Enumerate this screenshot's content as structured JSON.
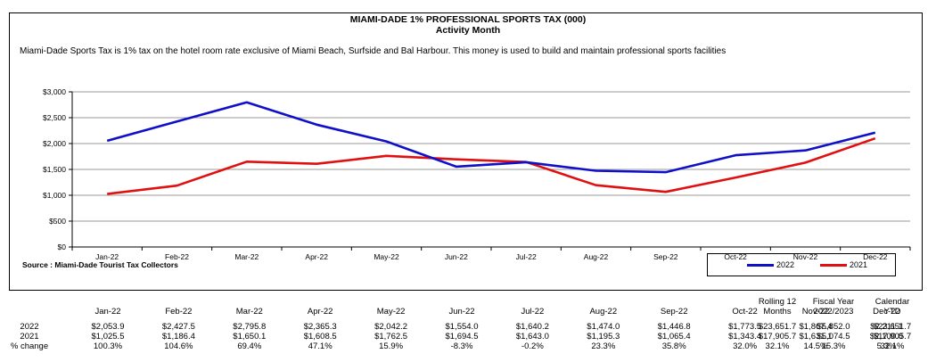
{
  "header": {
    "title": "MIAMI-DADE 1% PROFESSIONAL SPORTS TAX  (000)",
    "subtitle": "Activity Month",
    "description": "Miami-Dade Sports Tax is 1% tax on the hotel room rate exclusive of Miami Beach, Surfside and Bal Harbour. This money is used to build and maintain professional sports facilities",
    "source": "Source : Miami-Dade Tourist Tax Collectors"
  },
  "chart_data": {
    "type": "line",
    "categories": [
      "Jan-22",
      "Feb-22",
      "Mar-22",
      "Apr-22",
      "May-22",
      "Jun-22",
      "Jul-22",
      "Aug-22",
      "Sep-22",
      "Oct-22",
      "Nov-22",
      "Dec-22"
    ],
    "series": [
      {
        "name": "2022",
        "color": "#1010c8",
        "values": [
          2053.9,
          2427.5,
          2795.8,
          2365.3,
          2042.2,
          1554.0,
          1640.2,
          1474.0,
          1446.8,
          1773.5,
          1867.4,
          2211.1
        ]
      },
      {
        "name": "2021",
        "color": "#e01010",
        "values": [
          1025.5,
          1186.4,
          1650.1,
          1608.5,
          1762.5,
          1694.5,
          1643.0,
          1195.3,
          1065.4,
          1343.4,
          1631.1,
          2100.0
        ]
      }
    ],
    "ylim": [
      0,
      3000
    ],
    "yticks": [
      0,
      500,
      1000,
      1500,
      2000,
      2500,
      3000
    ],
    "ytick_labels": [
      "$0",
      "$500",
      "$1,000",
      "$1,500",
      "$2,000",
      "$2,500",
      "$3,000"
    ],
    "grid": true,
    "legend": "bottom-right"
  },
  "table": {
    "headers": [
      "Jan-22",
      "Feb-22",
      "Mar-22",
      "Apr-22",
      "May-22",
      "Jun-22",
      "Jul-22",
      "Aug-22",
      "Sep-22",
      "Oct-22",
      "Nov-22",
      "Dec-22",
      [
        "Rolling 12",
        "Months"
      ],
      [
        "Fiscal Year",
        "2022/2023"
      ],
      [
        "Calendar",
        "YTD"
      ]
    ],
    "rows": [
      {
        "label": "2022",
        "cells": [
          "$2,053.9",
          "$2,427.5",
          "$2,795.8",
          "$2,365.3",
          "$2,042.2",
          "$1,554.0",
          "$1,640.2",
          "$1,474.0",
          "$1,446.8",
          "$1,773.5",
          "$1,867.4",
          "$2,211.1",
          "$23,651.7",
          "$5,852.0",
          "$23,651.7"
        ]
      },
      {
        "label": "2021",
        "cells": [
          "$1,025.5",
          "$1,186.4",
          "$1,650.1",
          "$1,608.5",
          "$1,762.5",
          "$1,694.5",
          "$1,643.0",
          "$1,195.3",
          "$1,065.4",
          "$1,343.4",
          "$1,631.1",
          "$2,100.0",
          "$17,905.7",
          "$5,074.5",
          "$17,905.7"
        ]
      },
      {
        "label": "% change",
        "cells": [
          "100.3%",
          "104.6%",
          "69.4%",
          "47.1%",
          "15.9%",
          "-8.3%",
          "-0.2%",
          "23.3%",
          "35.8%",
          "32.0%",
          "14.5%",
          "5.3%",
          "32.1%",
          "15.3%",
          "32.1%"
        ]
      }
    ]
  }
}
